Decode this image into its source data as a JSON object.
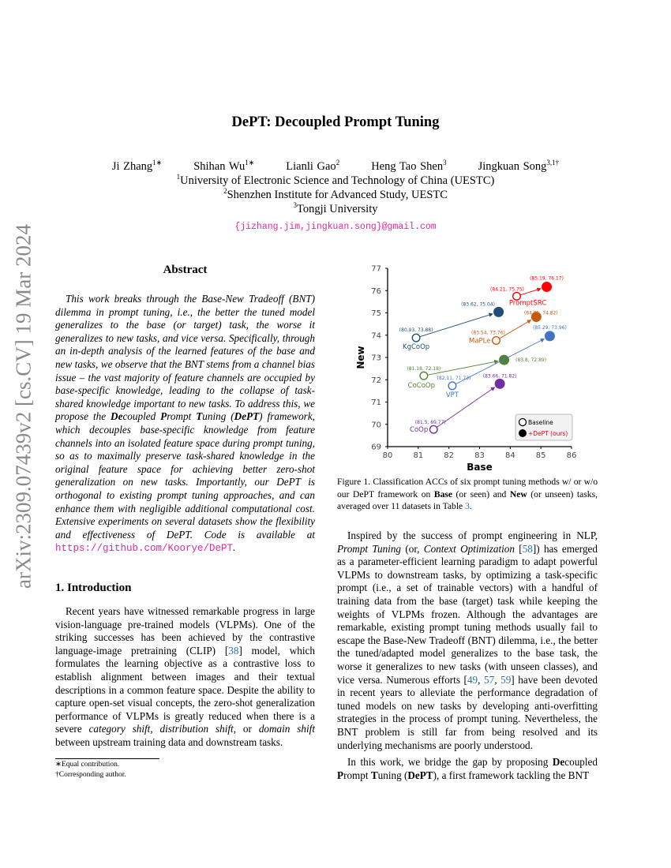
{
  "arxiv_id": "arXiv:2309.07439v2  [cs.CV]  19 Mar 2024",
  "title": "DePT: Decoupled Prompt Tuning",
  "authors": [
    {
      "name": "Ji Zhang",
      "sup": "1∗"
    },
    {
      "name": "Shihan Wu",
      "sup": "1∗"
    },
    {
      "name": "Lianli Gao",
      "sup": "2"
    },
    {
      "name": "Heng Tao Shen",
      "sup": "3"
    },
    {
      "name": "Jingkuan Song",
      "sup": "3,1†"
    }
  ],
  "affiliations": [
    {
      "sup": "1",
      "text": "University of Electronic Science and Technology of China (UESTC)"
    },
    {
      "sup": "2",
      "text": "Shenzhen Institute for Advanced Study, UESTC"
    },
    {
      "sup": "3",
      "text": "Tongji University"
    }
  ],
  "email": "{jizhang.jim,jingkuan.song}@gmail.com",
  "abstract_heading": "Abstract",
  "abstract": [
    {
      "t": "This work breaks through the Base-New Tradeoff (BNT) dilemma in prompt tuning, i.e., the better the tuned model generalizes to the base (or target) task, the worse it generalizes to new tasks, and vice versa. Specifically, through an in-depth analysis of the learned features of the base and new tasks, we observe that the BNT stems from a channel bias issue – the vast majority of feature channels are occupied by base-specific knowledge, leading to the collapse of task-shared knowledge important to new tasks. To address this, we propose the "
    },
    {
      "t": "De",
      "s": "b"
    },
    {
      "t": "coupled "
    },
    {
      "t": "P",
      "s": "b"
    },
    {
      "t": "rompt "
    },
    {
      "t": "T",
      "s": "b"
    },
    {
      "t": "uning ("
    },
    {
      "t": "DePT",
      "s": "b"
    },
    {
      "t": ") framework, which decouples base-specific knowledge from feature channels into an isolated feature space during prompt tuning, so as to maximally preserve task-shared knowledge in the original feature space for achieving better zero-shot generalization on new tasks. Importantly, our DePT is orthogonal to existing prompt tuning approaches, and can enhance them with negligible additional computational cost. Extensive experiments on several datasets show the flexibility and effectiveness of DePT. Code is available at "
    },
    {
      "t": "https://github.com/Koorye/DePT",
      "s": "url"
    },
    {
      "t": "."
    }
  ],
  "intro_heading": "1. Introduction",
  "intro_p1": [
    {
      "t": "Recent years have witnessed remarkable progress in large vision-language pre-trained models (VLPMs). One of the striking successes has been achieved by the contrastive language-image pretraining (CLIP) ["
    },
    {
      "t": "38",
      "s": "cite"
    },
    {
      "t": "] model, which formulates the learning objective as a contrastive loss to establish alignment between images and their textual descriptions in a common feature space. Despite the ability to capture open-set visual concepts, the zero-shot generalization performance of VLPMs is greatly reduced when there is a severe "
    },
    {
      "t": "category shift",
      "s": "it"
    },
    {
      "t": ", "
    },
    {
      "t": "distribution shift",
      "s": "it"
    },
    {
      "t": ", or "
    },
    {
      "t": "domain shift",
      "s": "it"
    },
    {
      "t": " between upstream training data and downstream tasks."
    }
  ],
  "footnotes": [
    "∗Equal contribution.",
    "†Corresponding author."
  ],
  "caption": [
    {
      "t": "Figure 1. Classification ACCs of six prompt tuning methods w/ or w/o our DePT framework on "
    },
    {
      "t": "Base",
      "s": "b"
    },
    {
      "t": " (or seen) and "
    },
    {
      "t": "New",
      "s": "b"
    },
    {
      "t": " (or unseen) tasks, averaged over 11 datasets in Table "
    },
    {
      "t": "3",
      "s": "cite"
    },
    {
      "t": "."
    }
  ],
  "right_p1": [
    {
      "t": "Inspired by the success of prompt engineering in NLP, "
    },
    {
      "t": "Prompt Tuning",
      "s": "it"
    },
    {
      "t": " (or, "
    },
    {
      "t": "Context Optimization",
      "s": "it"
    },
    {
      "t": " ["
    },
    {
      "t": "58",
      "s": "cite"
    },
    {
      "t": "]) has emerged as a parameter-efficient learning paradigm to adapt powerful VLPMs to downstream tasks, by optimizing a task-specific prompt (i.e., a set of trainable vectors) with a handful of training data from the base (target) task while keeping the weights of VLPMs frozen. Although the advantages are remarkable, existing prompt tuning methods usually fail to escape the Base-New Tradeoff (BNT) dilemma, i.e., the better the tuned/adapted model generalizes to the base task, the worse it generalizes to new tasks (with unseen classes), and vice versa. Numerous efforts ["
    },
    {
      "t": "49",
      "s": "cite"
    },
    {
      "t": ", "
    },
    {
      "t": "57",
      "s": "cite"
    },
    {
      "t": ", "
    },
    {
      "t": "59",
      "s": "cite"
    },
    {
      "t": "] have been devoted in recent years to alleviate the performance degradation of tuned models on new tasks by developing anti-overfitting strategies in the process of prompt tuning. Nevertheless, the BNT problem is still far from being resolved and its underlying mechanisms are poorly understood."
    }
  ],
  "right_p2": [
    {
      "t": "In this work, we bridge the gap by proposing "
    },
    {
      "t": "De",
      "s": "b"
    },
    {
      "t": "coupled "
    },
    {
      "t": "P",
      "s": "b"
    },
    {
      "t": "rompt "
    },
    {
      "t": "T",
      "s": "b"
    },
    {
      "t": "uning ("
    },
    {
      "t": "DePT",
      "s": "b"
    },
    {
      "t": "), a first framework tackling the BNT"
    }
  ],
  "chart_data": {
    "type": "scatter",
    "xlabel": "Base",
    "ylabel": "New",
    "xlim": [
      80,
      86
    ],
    "ylim": [
      69,
      77
    ],
    "xticks": [
      "80",
      "81",
      "82",
      "83",
      "84",
      "85",
      "86"
    ],
    "yticks": [
      "69",
      "70",
      "71",
      "72",
      "73",
      "74",
      "75",
      "76",
      "77"
    ],
    "legend": {
      "placement": "bottom-right",
      "entries": [
        {
          "label": "Baseline",
          "marker": "hollow-circle"
        },
        {
          "label": "+DePT (ours)",
          "marker": "filled-circle",
          "color": "#e8001c"
        }
      ]
    },
    "series": [
      {
        "name": "CoOp",
        "color": "#7030a0",
        "baseline": [
          81.5,
          69.77
        ],
        "dept": [
          83.66,
          71.82
        ],
        "baseline_label": "(81.5, 69.77)",
        "dept_label": "(83.66, 71.82)"
      },
      {
        "name": "CoCoOp",
        "color": "#548235",
        "baseline": [
          81.18,
          72.18
        ],
        "dept": [
          83.8,
          72.89
        ],
        "baseline_label": "(81.18, 72.18)",
        "dept_label": "(83.8, 72.89)"
      },
      {
        "name": "VPT",
        "color": "#4472c4",
        "baseline": [
          82.11,
          71.73
        ],
        "dept": [
          85.29,
          73.96
        ],
        "baseline_label": "(82.11, 71.73)",
        "dept_label": "(85.29, 73.96)"
      },
      {
        "name": "KgCoOp",
        "color": "#1f4e79",
        "baseline": [
          80.93,
          73.88
        ],
        "dept": [
          83.62,
          75.04
        ],
        "baseline_label": "(80.93, 73.88)",
        "dept_label": "(83.62, 75.04)"
      },
      {
        "name": "MaPLe",
        "color": "#c55a11",
        "baseline": [
          83.54,
          73.76
        ],
        "dept": [
          84.85,
          74.82
        ],
        "baseline_label": "(83.54, 73.76)",
        "dept_label": "(84.85, 74.82)"
      },
      {
        "name": "PromptSRC",
        "color": "#ff0000",
        "baseline": [
          84.21,
          75.75
        ],
        "dept": [
          85.19,
          76.17
        ],
        "baseline_label": "(84.21, 75.75)",
        "dept_label": "(85.19, 76.17)"
      }
    ]
  }
}
